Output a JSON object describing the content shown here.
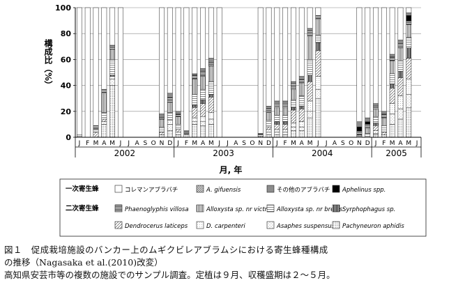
{
  "chart_data": {
    "type": "bar",
    "stacked": true,
    "ylabel": "構成比（%）",
    "xlabel": "月, 年",
    "ylim": [
      0,
      100
    ],
    "yticks": [
      0,
      20,
      40,
      60,
      80,
      100
    ],
    "month_letters": [
      "J",
      "F",
      "M",
      "A",
      "M",
      "J",
      "J",
      "A",
      "S",
      "O",
      "N",
      "D"
    ],
    "year_labels": [
      {
        "label": "2002",
        "months": 12
      },
      {
        "label": "2003",
        "months": 12
      },
      {
        "label": "2004",
        "months": 12
      },
      {
        "label": "2005",
        "months": 6
      }
    ],
    "primary_group_label": "一次寄生蜂",
    "secondary_group_label": "二次寄生蜂",
    "series": [
      {
        "name": "コレマンアブラバチ",
        "group": "primary",
        "fill": "white"
      },
      {
        "name": "A. gifuensis",
        "group": "primary",
        "fill": "cross"
      },
      {
        "name": "その他のアブラバチ",
        "group": "primary",
        "fill": "gray"
      },
      {
        "name": "Aphelinus spp.",
        "group": "primary",
        "fill": "black"
      },
      {
        "name": "Phaenoglyphis villosa",
        "group": "secondary",
        "fill": "hstripe"
      },
      {
        "name": "Alloxysta sp. nr victrix",
        "group": "secondary",
        "fill": "vstripe"
      },
      {
        "name": "Alloxysta sp. nr brevis",
        "group": "secondary",
        "fill": "hlines"
      },
      {
        "name": "Syrphophagus sp.",
        "group": "secondary",
        "fill": "vdense"
      },
      {
        "name": "Dendrocerus laticeps",
        "group": "secondary",
        "fill": "diag"
      },
      {
        "name": "D. carpenteri",
        "group": "secondary",
        "fill": "lightdots"
      },
      {
        "name": "Asaphes suspensus",
        "group": "secondary",
        "fill": "sparsedots"
      },
      {
        "name": "Pachyneuron aphidis",
        "group": "secondary",
        "fill": "dots"
      }
    ],
    "samples": [
      {
        "month": 1,
        "values": [
          98,
          0,
          0,
          0,
          0,
          0,
          2,
          0,
          0,
          0,
          0,
          0
        ]
      },
      {
        "month": 2,
        "values": [
          100,
          0,
          0,
          0,
          0,
          0,
          0,
          0,
          0,
          0,
          0,
          0
        ]
      },
      {
        "month": 3,
        "values": [
          91,
          0,
          0,
          0,
          3,
          0,
          2,
          0,
          4,
          0,
          0,
          0
        ]
      },
      {
        "month": 4,
        "values": [
          63,
          0,
          0,
          0,
          3,
          15,
          5,
          0,
          2,
          0,
          2,
          10
        ]
      },
      {
        "month": 5,
        "values": [
          29,
          0,
          1,
          0,
          2,
          8,
          12,
          1,
          0,
          2,
          5,
          40
        ]
      },
      {
        "month": 6,
        "values": [
          100,
          0,
          0,
          0,
          0,
          0,
          0,
          0,
          0,
          0,
          0,
          0
        ]
      },
      {
        "month": 11,
        "values": [
          82,
          0,
          2,
          0,
          2,
          6,
          4,
          0,
          2,
          0,
          0,
          2
        ]
      },
      {
        "month": 12,
        "values": [
          66,
          0,
          3,
          0,
          4,
          8,
          6,
          0,
          0,
          3,
          5,
          5
        ]
      },
      {
        "month": 13,
        "values": [
          80,
          0,
          2,
          0,
          2,
          6,
          4,
          0,
          2,
          0,
          2,
          2
        ]
      },
      {
        "month": 14,
        "values": [
          95,
          0,
          0,
          0,
          2,
          0,
          1,
          0,
          0,
          0,
          0,
          2
        ]
      },
      {
        "month": 15,
        "values": [
          51,
          0,
          1,
          0,
          3,
          12,
          8,
          2,
          8,
          3,
          2,
          10
        ]
      },
      {
        "month": 16,
        "values": [
          47,
          0,
          2,
          0,
          4,
          10,
          8,
          3,
          10,
          4,
          3,
          9
        ]
      },
      {
        "month": 17,
        "values": [
          39,
          0,
          3,
          0,
          3,
          12,
          10,
          2,
          12,
          5,
          4,
          10
        ]
      },
      {
        "month": 18,
        "values": [
          100,
          0,
          0,
          0,
          0,
          0,
          0,
          0,
          0,
          0,
          0,
          0
        ]
      },
      {
        "month": 23,
        "values": [
          97,
          0,
          0,
          0,
          1,
          0,
          1,
          0,
          0,
          0,
          0,
          1
        ]
      },
      {
        "month": 24,
        "values": [
          76,
          0,
          2,
          0,
          3,
          6,
          5,
          0,
          2,
          2,
          2,
          2
        ]
      },
      {
        "month": 25,
        "values": [
          72,
          0,
          2,
          0,
          3,
          6,
          5,
          2,
          4,
          2,
          2,
          2
        ]
      },
      {
        "month": 26,
        "values": [
          72,
          0,
          2,
          0,
          3,
          6,
          5,
          2,
          4,
          2,
          2,
          2
        ]
      },
      {
        "month": 27,
        "values": [
          57,
          0,
          2,
          0,
          4,
          8,
          6,
          2,
          10,
          3,
          3,
          5
        ]
      },
      {
        "month": 28,
        "values": [
          53,
          0,
          2,
          0,
          3,
          10,
          8,
          2,
          10,
          4,
          3,
          5
        ]
      },
      {
        "month": 29,
        "values": [
          16,
          0,
          2,
          0,
          4,
          18,
          12,
          5,
          15,
          8,
          5,
          15
        ]
      },
      {
        "month": 30,
        "values": [
          6,
          0,
          0,
          0,
          3,
          12,
          6,
          6,
          20,
          10,
          7,
          30
        ]
      },
      {
        "month": 35,
        "values": [
          88,
          0,
          4,
          3,
          3,
          1,
          1,
          0,
          0,
          0,
          0,
          0
        ]
      },
      {
        "month": 36,
        "values": [
          85,
          0,
          3,
          2,
          3,
          4,
          3,
          0,
          0,
          0,
          0,
          0
        ]
      },
      {
        "month": 37,
        "values": [
          74,
          0,
          2,
          0,
          2,
          6,
          5,
          2,
          4,
          2,
          1,
          2
        ]
      },
      {
        "month": 38,
        "values": [
          80,
          0,
          2,
          0,
          3,
          6,
          5,
          0,
          2,
          0,
          0,
          2
        ]
      },
      {
        "month": 39,
        "values": [
          36,
          0,
          2,
          0,
          3,
          10,
          8,
          3,
          12,
          8,
          8,
          10
        ]
      },
      {
        "month": 40,
        "values": [
          25,
          0,
          2,
          0,
          4,
          10,
          8,
          5,
          14,
          10,
          8,
          14
        ]
      },
      {
        "month": 41,
        "values": [
          4,
          0,
          2,
          4,
          3,
          10,
          8,
          8,
          16,
          12,
          10,
          23
        ]
      }
    ]
  },
  "caption": {
    "line1": "図１　促成栽培施設のバンカー上のムギクビレアブラムシにおける寄生蜂種構成",
    "line2": "の推移（Nagasaka et al.(2010)改変）",
    "line3": "高知県安芸市等の複数の施設でのサンプル調査。定植は９月、収穫盛期は２～５月。"
  }
}
